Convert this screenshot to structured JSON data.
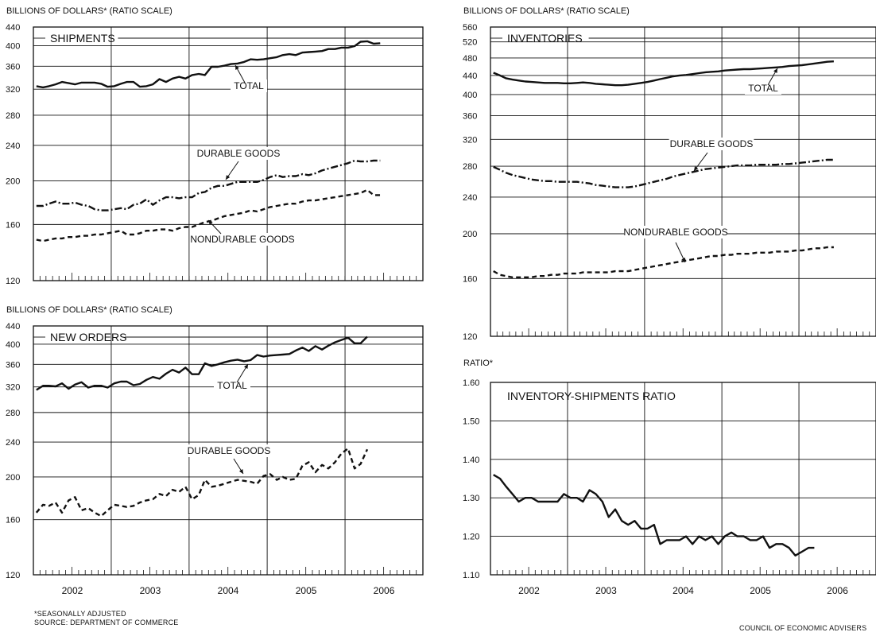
{
  "footer": {
    "note": "*SEASONALLY ADJUSTED",
    "source": "SOURCE: DEPARTMENT OF COMMERCE",
    "credit": "COUNCIL OF ECONOMIC ADVISERS"
  },
  "chart_data": [
    {
      "id": "shipments",
      "type": "line",
      "title": "SHIPMENTS",
      "ylabel": "BILLIONS OF DOLLARS* (RATIO SCALE)",
      "yscale": "log",
      "ylim": [
        120,
        440
      ],
      "yticks": [
        120,
        160,
        200,
        240,
        280,
        320,
        360,
        400,
        440
      ],
      "x_range": [
        "2002-01",
        "2006-12"
      ],
      "x_labels": [
        "2002",
        "2003",
        "2004",
        "2005",
        "2006"
      ],
      "grid": true,
      "series": [
        {
          "name": "TOTAL",
          "style": "solid",
          "start": "2002-01",
          "values": [
            325,
            323,
            325,
            328,
            332,
            330,
            328,
            331,
            331,
            331,
            329,
            324,
            325,
            329,
            332,
            332,
            324,
            325,
            328,
            337,
            332,
            338,
            341,
            338,
            344,
            346,
            344,
            359,
            359,
            361,
            364,
            365,
            368,
            373,
            372,
            373,
            375,
            377,
            381,
            383,
            381,
            386,
            387,
            388,
            389,
            393,
            393,
            396,
            396,
            399,
            408,
            409,
            404,
            405
          ]
        },
        {
          "name": "DURABLE GOODS",
          "style": "dashdot",
          "start": "2002-01",
          "values": [
            176,
            176,
            178,
            180,
            178,
            178,
            179,
            177,
            176,
            173,
            172,
            172,
            173,
            174,
            173,
            177,
            178,
            182,
            177,
            181,
            184,
            184,
            183,
            184,
            184,
            188,
            189,
            193,
            195,
            195,
            197,
            199,
            199,
            199,
            199,
            201,
            204,
            206,
            204,
            205,
            205,
            207,
            206,
            208,
            211,
            213,
            215,
            217,
            219,
            222,
            221,
            221,
            222,
            222
          ]
        },
        {
          "name": "NONDURABLE GOODS",
          "style": "dashed",
          "start": "2002-01",
          "values": [
            148,
            147,
            148,
            149,
            149,
            150,
            150,
            151,
            151,
            152,
            152,
            153,
            154,
            155,
            152,
            152,
            153,
            155,
            155,
            156,
            156,
            155,
            157,
            158,
            158,
            160,
            162,
            163,
            165,
            167,
            168,
            169,
            170,
            172,
            171,
            173,
            175,
            176,
            177,
            178,
            178,
            180,
            181,
            181,
            182,
            183,
            184,
            185,
            186,
            187,
            188,
            191,
            186,
            186
          ]
        }
      ],
      "annotations": [
        "TOTAL",
        "DURABLE GOODS",
        "NONDURABLE GOODS"
      ]
    },
    {
      "id": "inventories",
      "type": "line",
      "title": "INVENTORIES",
      "ylabel": "BILLIONS OF DOLLARS* (RATIO SCALE)",
      "yscale": "log",
      "ylim": [
        120,
        560
      ],
      "yticks": [
        120,
        160,
        200,
        240,
        280,
        320,
        360,
        400,
        440,
        480,
        520,
        560
      ],
      "x_range": [
        "2002-01",
        "2006-12"
      ],
      "x_labels": [
        "2002",
        "2003",
        "2004",
        "2005",
        "2006"
      ],
      "grid": true,
      "series": [
        {
          "name": "TOTAL",
          "style": "solid",
          "start": "2002-01",
          "values": [
            446,
            440,
            434,
            431,
            429,
            427,
            426,
            425,
            424,
            424,
            424,
            423,
            423,
            424,
            425,
            424,
            422,
            421,
            420,
            419,
            419,
            420,
            422,
            424,
            426,
            429,
            432,
            435,
            438,
            440,
            441,
            443,
            445,
            447,
            448,
            449,
            451,
            452,
            453,
            454,
            454,
            455,
            456,
            457,
            458,
            459,
            461,
            462,
            463,
            465,
            467,
            469,
            471,
            472
          ]
        },
        {
          "name": "DURABLE GOODS",
          "style": "dashdot",
          "start": "2002-01",
          "values": [
            279,
            275,
            271,
            268,
            266,
            264,
            262,
            261,
            260,
            260,
            259,
            259,
            259,
            259,
            258,
            257,
            255,
            254,
            253,
            252,
            252,
            252,
            253,
            255,
            257,
            259,
            261,
            263,
            266,
            268,
            270,
            272,
            274,
            276,
            277,
            278,
            279,
            280,
            281,
            281,
            281,
            282,
            282,
            282,
            282,
            283,
            283,
            284,
            285,
            286,
            287,
            288,
            289,
            289
          ]
        },
        {
          "name": "NONDURABLE GOODS",
          "style": "dashed",
          "start": "2002-01",
          "values": [
            166,
            163,
            162,
            161,
            161,
            161,
            161,
            162,
            162,
            163,
            163,
            164,
            164,
            164,
            165,
            165,
            165,
            165,
            165,
            166,
            166,
            166,
            167,
            168,
            169,
            170,
            171,
            172,
            173,
            174,
            175,
            176,
            177,
            178,
            179,
            179,
            180,
            180,
            181,
            181,
            181,
            182,
            182,
            182,
            183,
            183,
            183,
            184,
            184,
            185,
            186,
            186,
            187,
            187
          ]
        }
      ],
      "annotations": [
        "TOTAL",
        "DURABLE GOODS",
        "NONDURABLE GOODS"
      ]
    },
    {
      "id": "new_orders",
      "type": "line",
      "title": "NEW ORDERS",
      "ylabel": "BILLIONS OF DOLLARS* (RATIO SCALE)",
      "yscale": "log",
      "ylim": [
        120,
        440
      ],
      "yticks": [
        120,
        160,
        200,
        240,
        280,
        320,
        360,
        400,
        440
      ],
      "x_range": [
        "2002-01",
        "2006-12"
      ],
      "x_labels": [
        "2002",
        "2003",
        "2004",
        "2005",
        "2006"
      ],
      "grid": true,
      "series": [
        {
          "name": "TOTAL",
          "style": "solid",
          "start": "2002-01",
          "values": [
            315,
            322,
            322,
            321,
            326,
            317,
            324,
            328,
            319,
            322,
            322,
            319,
            326,
            329,
            329,
            323,
            325,
            332,
            337,
            334,
            343,
            350,
            345,
            354,
            342,
            342,
            362,
            357,
            360,
            364,
            367,
            369,
            366,
            368,
            378,
            375,
            377,
            378,
            379,
            380,
            387,
            393,
            386,
            396,
            389,
            397,
            404,
            409,
            414,
            402,
            402,
            416
          ]
        },
        {
          "name": "DURABLE GOODS",
          "style": "dashed",
          "start": "2002-01",
          "values": [
            166,
            173,
            172,
            175,
            166,
            177,
            180,
            168,
            170,
            166,
            163,
            168,
            173,
            172,
            171,
            172,
            175,
            177,
            178,
            183,
            181,
            187,
            185,
            190,
            178,
            182,
            197,
            190,
            191,
            193,
            195,
            197,
            196,
            195,
            193,
            201,
            203,
            197,
            200,
            197,
            198,
            212,
            216,
            205,
            213,
            209,
            216,
            226,
            232,
            209,
            214,
            231
          ]
        }
      ],
      "annotations": [
        "TOTAL",
        "DURABLE GOODS"
      ]
    },
    {
      "id": "ratio",
      "type": "line",
      "title": "INVENTORY-SHIPMENTS RATIO",
      "ylabel": "RATIO*",
      "yscale": "linear",
      "ylim": [
        1.1,
        1.6
      ],
      "yticks": [
        1.1,
        1.2,
        1.3,
        1.4,
        1.5,
        1.6
      ],
      "x_range": [
        "2002-01",
        "2006-12"
      ],
      "x_labels": [
        "2002",
        "2003",
        "2004",
        "2005",
        "2006"
      ],
      "grid": true,
      "series": [
        {
          "name": "",
          "style": "solid",
          "start": "2002-01",
          "values": [
            1.36,
            1.35,
            1.33,
            1.31,
            1.29,
            1.3,
            1.3,
            1.29,
            1.29,
            1.29,
            1.29,
            1.31,
            1.3,
            1.3,
            1.29,
            1.32,
            1.31,
            1.29,
            1.25,
            1.27,
            1.24,
            1.23,
            1.24,
            1.22,
            1.22,
            1.23,
            1.18,
            1.19,
            1.19,
            1.19,
            1.2,
            1.18,
            1.2,
            1.19,
            1.2,
            1.18,
            1.2,
            1.21,
            1.2,
            1.2,
            1.19,
            1.19,
            1.2,
            1.17,
            1.18,
            1.18,
            1.17,
            1.15,
            1.16,
            1.17,
            1.17
          ]
        }
      ]
    }
  ]
}
